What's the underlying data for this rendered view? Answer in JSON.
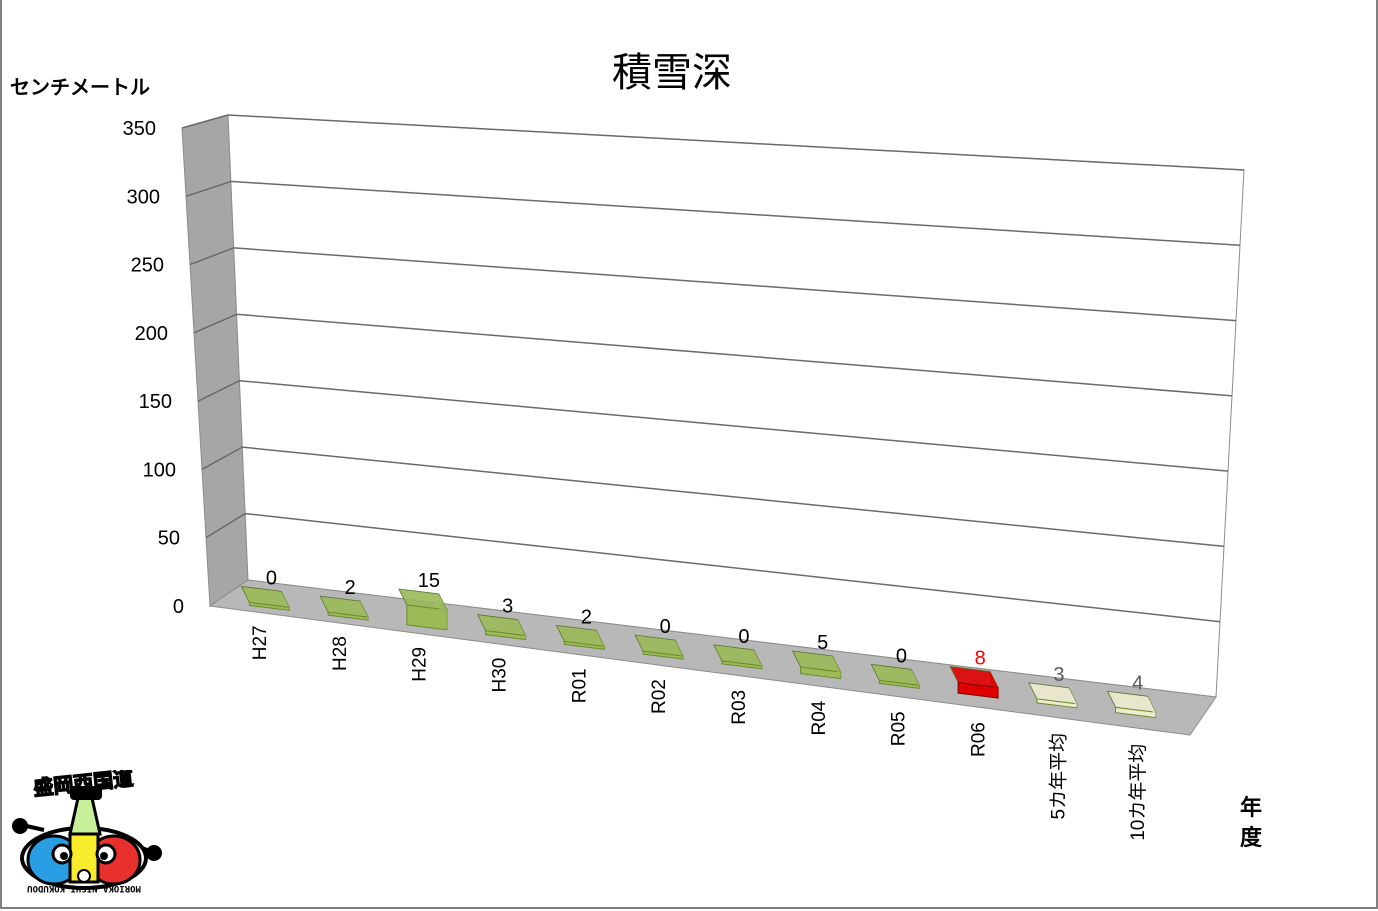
{
  "chart_data": {
    "type": "bar",
    "title": "積雪深",
    "ylabel": "センチメートル",
    "xlabel": "年度",
    "ylim": [
      0,
      350
    ],
    "yticks": [
      0,
      50,
      100,
      150,
      200,
      250,
      300,
      350
    ],
    "categories": [
      "H27",
      "H28",
      "H29",
      "H30",
      "R01",
      "R02",
      "R03",
      "R04",
      "R05",
      "R06",
      "5カ年平均",
      "10カ年平均"
    ],
    "values": [
      0,
      2,
      15,
      3,
      2,
      0,
      0,
      5,
      0,
      8,
      3,
      4
    ],
    "data_labels": [
      "0",
      "2",
      "15",
      "3",
      "2",
      "0",
      "0",
      "5",
      "0",
      "8",
      "3",
      "4"
    ],
    "grid": true,
    "projection": "3d",
    "colors": {
      "year_bars": "#9bbb59",
      "current_year_bar": "#e00000",
      "average_bars": "#eeeccf",
      "current_year_label": "#ff0000",
      "average_label": "#595959"
    }
  },
  "logo": {
    "text": "盛岡西国道",
    "subtext": "MORIOKA NISHI KOKUDOU"
  }
}
